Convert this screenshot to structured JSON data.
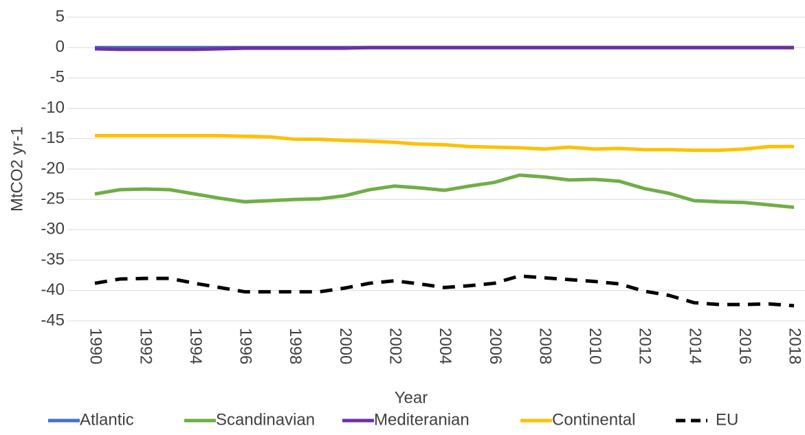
{
  "chart_data": {
    "type": "line",
    "x_label": "Year",
    "y_label": "MtCO2 yr-1",
    "x": [
      1990,
      1991,
      1992,
      1993,
      1994,
      1995,
      1996,
      1997,
      1998,
      1999,
      2000,
      2001,
      2002,
      2003,
      2004,
      2005,
      2006,
      2007,
      2008,
      2009,
      2010,
      2011,
      2012,
      2013,
      2014,
      2015,
      2016,
      2017,
      2018
    ],
    "xlim": [
      1990,
      2018
    ],
    "xticks": [
      1990,
      1992,
      1994,
      1996,
      1998,
      2000,
      2002,
      2004,
      2006,
      2008,
      2010,
      2012,
      2014,
      2016,
      2018
    ],
    "ylim": [
      -45,
      5
    ],
    "yticks": [
      -45,
      -40,
      -35,
      -30,
      -25,
      -20,
      -15,
      -10,
      -5,
      0,
      5
    ],
    "grid": true,
    "legend": "bottom",
    "series": [
      {
        "name": "Atlantic",
        "color": "#4472c4",
        "values": [
          0,
          0,
          0,
          0,
          0,
          0,
          0,
          0,
          0,
          0,
          0,
          0,
          0,
          0,
          0,
          0,
          0,
          0,
          0,
          0,
          0,
          0,
          0,
          0,
          0,
          0,
          0,
          0,
          0
        ]
      },
      {
        "name": "Scandinavian",
        "color": "#70ad47",
        "values": [
          -24.1,
          -23.4,
          -23.3,
          -23.4,
          -24.1,
          -24.8,
          -25.4,
          -25.2,
          -25.0,
          -24.9,
          -24.4,
          -23.4,
          -22.8,
          -23.1,
          -23.5,
          -22.8,
          -22.2,
          -21.0,
          -21.3,
          -21.8,
          -21.7,
          -22.0,
          -23.2,
          -24.0,
          -25.2,
          -25.4,
          -25.5,
          -25.9,
          -26.3
        ]
      },
      {
        "name": "Mediteranian",
        "color": "#7030a0",
        "values": [
          -0.2,
          -0.3,
          -0.3,
          -0.3,
          -0.3,
          -0.2,
          -0.1,
          -0.1,
          -0.1,
          -0.1,
          -0.1,
          0,
          0,
          0,
          0,
          0,
          0,
          0,
          0,
          0,
          0,
          0,
          0,
          0,
          0,
          0,
          0,
          0,
          0
        ]
      },
      {
        "name": "Continental",
        "color": "#ffc000",
        "values": [
          -14.5,
          -14.5,
          -14.5,
          -14.5,
          -14.5,
          -14.5,
          -14.6,
          -14.7,
          -15.1,
          -15.1,
          -15.3,
          -15.4,
          -15.6,
          -15.9,
          -16.0,
          -16.3,
          -16.4,
          -16.5,
          -16.7,
          -16.4,
          -16.7,
          -16.6,
          -16.8,
          -16.8,
          -16.9,
          -16.9,
          -16.7,
          -16.3,
          -16.3
        ]
      },
      {
        "name": "EU",
        "color": "#000000",
        "dashed": true,
        "values": [
          -38.8,
          -38.1,
          -38.0,
          -38.0,
          -38.8,
          -39.5,
          -40.2,
          -40.2,
          -40.2,
          -40.2,
          -39.6,
          -38.8,
          -38.4,
          -38.9,
          -39.5,
          -39.2,
          -38.8,
          -37.6,
          -37.9,
          -38.2,
          -38.5,
          -38.9,
          -40.1,
          -40.8,
          -42.0,
          -42.3,
          -42.3,
          -42.2,
          -42.5
        ]
      }
    ]
  }
}
